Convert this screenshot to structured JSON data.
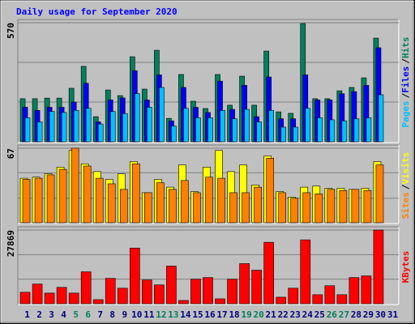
{
  "chart_data": [
    {
      "type": "bar",
      "title": "Daily usage for September 2020",
      "title_color": "#0000ff",
      "ylim": [
        0,
        570
      ],
      "yticks": [
        570
      ],
      "gridlines": [
        190,
        380
      ],
      "legend_separator": "/",
      "series": [
        {
          "name": "Hits",
          "color": "#00805c",
          "values": [
            206,
            206,
            209,
            209,
            256,
            361,
            120,
            248,
            221,
            407,
            252,
            438,
            112,
            322,
            194,
            159,
            322,
            175,
            314,
            175,
            434,
            143,
            136,
            566,
            206,
            206,
            244,
            260,
            306,
            496,
            0
          ]
        },
        {
          "name": "Files",
          "color": "#0000ff",
          "values": [
            165,
            150,
            165,
            165,
            190,
            280,
            95,
            200,
            210,
            340,
            200,
            320,
            100,
            260,
            165,
            140,
            290,
            155,
            270,
            120,
            310,
            110,
            110,
            320,
            200,
            200,
            230,
            240,
            270,
            450,
            0
          ]
        },
        {
          "name": "Pages",
          "color": "#00c0ff",
          "values": [
            115,
            95,
            145,
            140,
            150,
            160,
            85,
            145,
            135,
            230,
            165,
            260,
            75,
            160,
            115,
            115,
            150,
            110,
            155,
            95,
            150,
            70,
            70,
            160,
            115,
            105,
            100,
            110,
            115,
            225,
            0
          ]
        }
      ]
    },
    {
      "type": "bar",
      "ylim": [
        0,
        67
      ],
      "yticks": [
        67
      ],
      "gridlines": [
        22,
        45
      ],
      "legend_separator": "/",
      "series": [
        {
          "name": "Visits",
          "color": "#ffff00",
          "values": [
            40,
            41,
            44,
            50,
            65,
            53,
            46,
            39,
            44,
            55,
            27,
            39,
            32,
            52,
            28,
            50,
            65,
            46,
            52,
            34,
            60,
            28,
            23,
            32,
            33,
            31,
            31,
            30,
            31,
            55,
            0
          ]
        },
        {
          "name": "Sites",
          "color": "#ff8000",
          "values": [
            39,
            40,
            43,
            48,
            67,
            51,
            40,
            35,
            30,
            53,
            27,
            36,
            30,
            38,
            27,
            41,
            40,
            27,
            27,
            32,
            58,
            27,
            22,
            27,
            26,
            30,
            29,
            30,
            29,
            52,
            0
          ]
        }
      ]
    },
    {
      "type": "bar",
      "ylim": [
        0,
        27869
      ],
      "yticks": [
        27869
      ],
      "gridlines": [
        9290,
        18579
      ],
      "series": [
        {
          "name": "KBytes",
          "color": "#ff0000",
          "values": [
            4336,
            7433,
            4026,
            6193,
            4026,
            12078,
            1549,
            9600,
            5884,
            21059,
            8981,
            7123,
            14246,
            1239,
            9290,
            9910,
            1858,
            9290,
            15175,
            12697,
            23227,
            2478,
            5884,
            24156,
            3406,
            6813,
            3406,
            9910,
            10529,
            27869,
            0
          ]
        }
      ],
      "categories": [
        "1",
        "2",
        "3",
        "4",
        "5",
        "6",
        "7",
        "8",
        "9",
        "10",
        "11",
        "12",
        "13",
        "14",
        "15",
        "16",
        "17",
        "18",
        "19",
        "20",
        "21",
        "22",
        "23",
        "24",
        "25",
        "26",
        "27",
        "28",
        "29",
        "30",
        "31"
      ],
      "tick_label_colors": [
        "#000080",
        "#000080",
        "#000080",
        "#000080",
        "#00805c",
        "#00805c",
        "#000080",
        "#000080",
        "#000080",
        "#000080",
        "#000080",
        "#00805c",
        "#00805c",
        "#000080",
        "#000080",
        "#000080",
        "#000080",
        "#000080",
        "#00805c",
        "#00805c",
        "#000080",
        "#000080",
        "#000080",
        "#000080",
        "#000080",
        "#00805c",
        "#00805c",
        "#000080",
        "#000080",
        "#000080",
        "#000080"
      ]
    }
  ]
}
